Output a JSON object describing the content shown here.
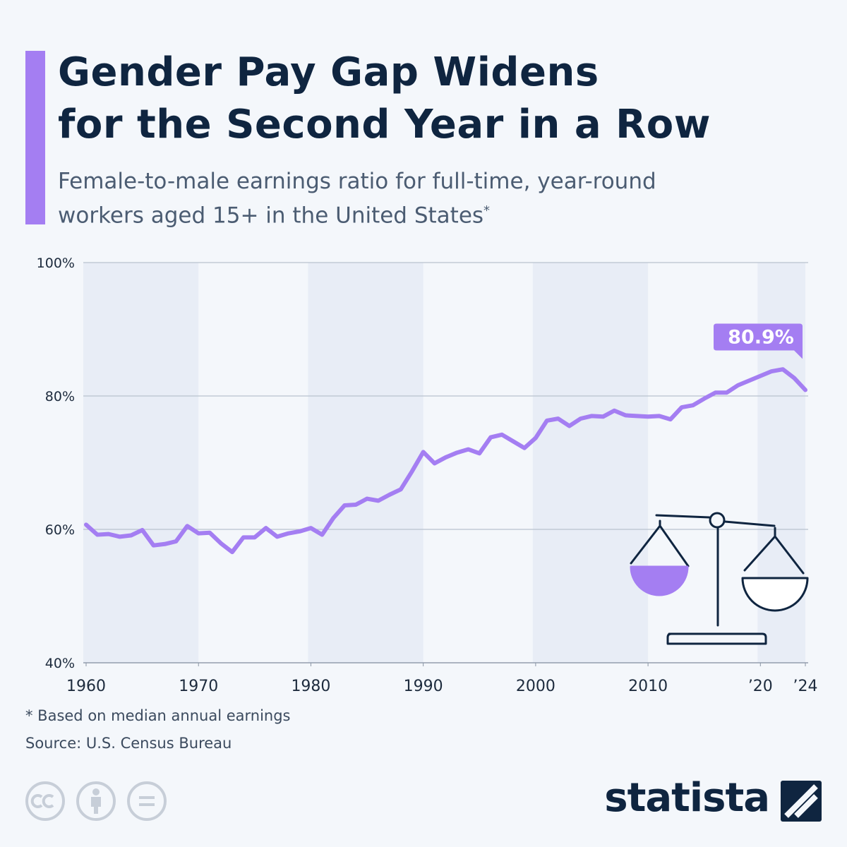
{
  "chart_data": {
    "type": "line",
    "title": [
      "Gender Pay Gap Widens",
      "for the Second Year in a Row"
    ],
    "subtitle": "Female-to-male earnings ratio for full-time, year-round workers aged 15+ in the United States",
    "subtitle_mark": "*",
    "footnote": "* Based on median annual earnings",
    "source": "Source: U.S. Census Bureau",
    "brand": "statista",
    "color": "#a47ef2",
    "x": [
      1960,
      1961,
      1962,
      1963,
      1964,
      1965,
      1966,
      1967,
      1968,
      1969,
      1970,
      1971,
      1972,
      1973,
      1974,
      1975,
      1976,
      1977,
      1978,
      1979,
      1980,
      1981,
      1982,
      1983,
      1984,
      1985,
      1986,
      1987,
      1988,
      1989,
      1990,
      1991,
      1992,
      1993,
      1994,
      1995,
      1996,
      1997,
      1998,
      1999,
      2000,
      2001,
      2002,
      2003,
      2004,
      2005,
      2006,
      2007,
      2008,
      2009,
      2010,
      2011,
      2012,
      2013,
      2014,
      2015,
      2016,
      2017,
      2018,
      2019,
      2020,
      2021,
      2022,
      2023,
      2024
    ],
    "values": [
      60.7,
      59.2,
      59.3,
      58.9,
      59.1,
      59.9,
      57.6,
      57.8,
      58.2,
      60.5,
      59.4,
      59.5,
      57.9,
      56.6,
      58.8,
      58.8,
      60.2,
      58.9,
      59.4,
      59.7,
      60.2,
      59.2,
      61.7,
      63.6,
      63.7,
      64.6,
      64.3,
      65.2,
      66.0,
      68.7,
      71.6,
      69.9,
      70.8,
      71.5,
      72.0,
      71.4,
      73.8,
      74.2,
      73.2,
      72.2,
      73.7,
      76.3,
      76.6,
      75.5,
      76.6,
      77.0,
      76.9,
      77.8,
      77.1,
      77.0,
      76.9,
      77.0,
      76.5,
      78.3,
      78.6,
      79.6,
      80.5,
      80.5,
      81.6,
      82.3,
      83.0,
      83.7,
      84.0,
      82.7,
      80.9
    ],
    "value_labels": [
      null,
      null,
      null,
      null,
      null,
      null,
      null,
      null,
      null,
      null,
      null,
      null,
      null,
      null,
      null,
      null,
      null,
      null,
      null,
      null,
      null,
      null,
      null,
      null,
      null,
      null,
      null,
      null,
      null,
      null,
      null,
      null,
      null,
      null,
      null,
      null,
      null,
      null,
      null,
      null,
      null,
      null,
      null,
      null,
      null,
      null,
      null,
      null,
      null,
      null,
      null,
      null,
      null,
      null,
      null,
      null,
      null,
      null,
      null,
      null,
      null,
      null,
      null,
      null,
      "80.9%"
    ],
    "xlim": [
      1960,
      2024
    ],
    "xticks": [
      1960,
      1970,
      1980,
      1990,
      2000,
      2010,
      {
        "value": 2020,
        "label": "’20"
      },
      {
        "value": 2024,
        "label": "’24"
      }
    ],
    "ylim": [
      40,
      100
    ],
    "yticks": [
      {
        "value": 40,
        "label": "40%"
      },
      {
        "value": 60,
        "label": "60%"
      },
      {
        "value": 80,
        "label": "80%"
      },
      {
        "value": 100,
        "label": "100%"
      }
    ],
    "grid": true
  }
}
